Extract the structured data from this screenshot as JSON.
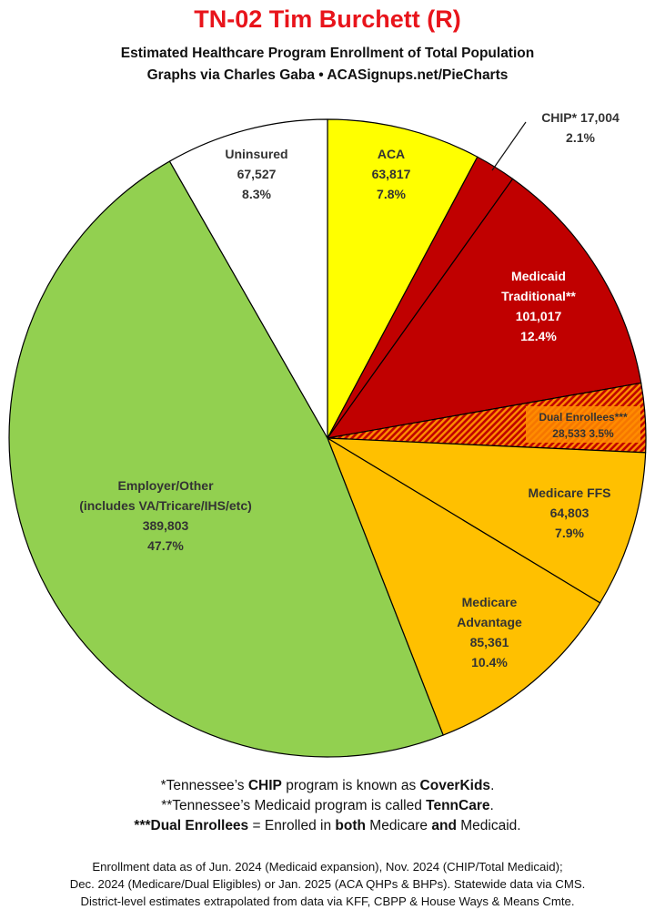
{
  "header": {
    "title": "TN-02 Tim Burchett (R)",
    "subtitle1": "Estimated Healthcare Program Enrollment of Total Population",
    "subtitle2": "Graphs via Charles Gaba  •  ACASignups.net/PieCharts"
  },
  "chart_data": {
    "type": "pie",
    "start": "12 o'clock, clockwise",
    "slices": [
      {
        "name": "ACA",
        "value": 63817,
        "value_label": "63,817",
        "percent": "7.8%",
        "color": "#ffff00"
      },
      {
        "name": "CHIP*",
        "value": 17004,
        "value_label": "17,004",
        "percent": "2.1%",
        "color": "#c00000"
      },
      {
        "name": "Medicaid Traditional**",
        "value": 101017,
        "value_label": "101,017",
        "percent": "12.4%",
        "color": "#c00000"
      },
      {
        "name": "Dual Enrollees***",
        "value": 28533,
        "value_label": "28,533",
        "percent": "3.5%",
        "color": "#c00000",
        "pattern": "orange-red hatch"
      },
      {
        "name": "Medicare FFS",
        "value": 64803,
        "value_label": "64,803",
        "percent": "7.9%",
        "color": "#ffc000"
      },
      {
        "name": "Medicare Advantage",
        "value": 85361,
        "value_label": "85,361",
        "percent": "10.4%",
        "color": "#ffc000"
      },
      {
        "name": "Employer/Other (includes VA/Tricare/IHS/etc)",
        "value": 389803,
        "value_label": "389,803",
        "percent": "47.7%",
        "color": "#92d050"
      },
      {
        "name": "Uninsured",
        "value": 67527,
        "value_label": "67,527",
        "percent": "8.3%",
        "color": "#ffffff"
      }
    ],
    "labels": {
      "aca": [
        "ACA",
        "63,817",
        "7.8%"
      ],
      "chip": [
        "CHIP* 17,004",
        "2.1%"
      ],
      "medicaid": [
        "Medicaid",
        "Traditional**",
        "101,017",
        "12.4%"
      ],
      "dual": [
        "Dual Enrollees***",
        "28,533 3.5%"
      ],
      "ffs": [
        "Medicare FFS",
        "64,803",
        "7.9%"
      ],
      "ma": [
        "Medicare",
        "Advantage",
        "85,361",
        "10.4%"
      ],
      "employer": [
        "Employer/Other",
        "(includes VA/Tricare/IHS/etc)",
        "389,803",
        "47.7%"
      ],
      "uninsured": [
        "Uninsured",
        "67,527",
        "8.3%"
      ]
    }
  },
  "notes": {
    "line1_pre": "*Tennessee’s ",
    "line1_b1": "CHIP",
    "line1_mid": " program is known as ",
    "line1_b2": "CoverKids",
    "line1_post": ".",
    "line2_pre": "**Tennessee’s Medicaid program is called ",
    "line2_b1": "TennCare",
    "line2_post": ".",
    "line3_b1": "***Dual Enrollees",
    "line3_mid1": " = Enrolled in ",
    "line3_b2": "both",
    "line3_mid2": " Medicare ",
    "line3_b3": "and",
    "line3_post": " Medicaid."
  },
  "footer": {
    "line1": "Enrollment data as of Jun. 2024 (Medicaid expansion), Nov. 2024 (CHIP/Total Medicaid);",
    "line2": "Dec. 2024 (Medicare/Dual Eligibles) or Jan. 2025 (ACA QHPs & BHPs). Statewide data via CMS.",
    "line3": "District-level estimates extrapolated from data via KFF, CBPP & House Ways & Means Cmte."
  }
}
